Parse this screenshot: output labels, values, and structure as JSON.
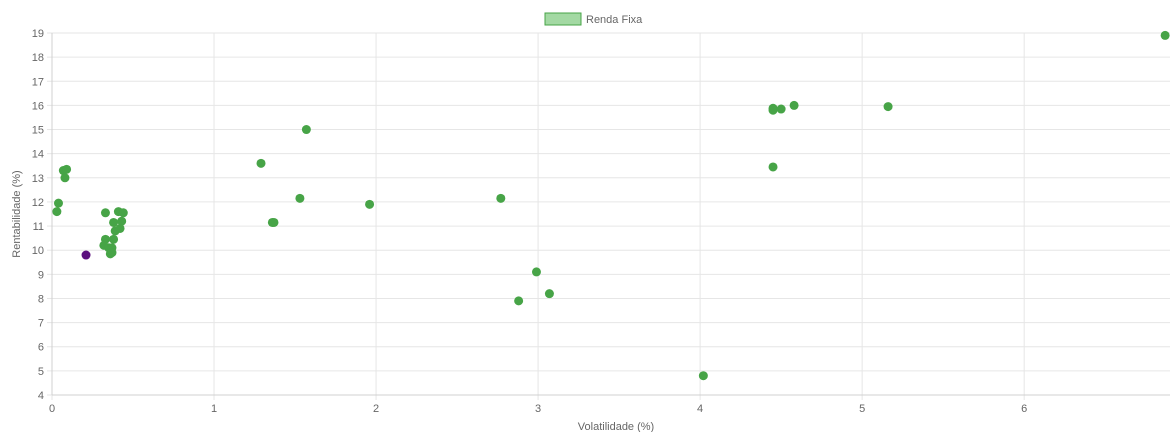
{
  "chart_data": {
    "type": "scatter",
    "xlabel": "Volatilidade (%)",
    "ylabel": "Rentabilidade (%)",
    "xlim": [
      0,
      6.9
    ],
    "ylim": [
      4,
      19
    ],
    "x_ticks": [
      0,
      1,
      2,
      3,
      4,
      5,
      6
    ],
    "y_ticks": [
      4,
      5,
      6,
      7,
      8,
      9,
      10,
      11,
      12,
      13,
      14,
      15,
      16,
      17,
      18,
      19
    ],
    "grid": true,
    "legend_position": "top",
    "series": [
      {
        "name": "Renda Fixa",
        "color": "#47a447",
        "legend_color": "#a3d9a3",
        "points": [
          {
            "x": 0.03,
            "y": 11.6
          },
          {
            "x": 0.04,
            "y": 11.95
          },
          {
            "x": 0.07,
            "y": 13.3
          },
          {
            "x": 0.09,
            "y": 13.35
          },
          {
            "x": 0.08,
            "y": 13.0
          },
          {
            "x": 0.33,
            "y": 11.55
          },
          {
            "x": 0.41,
            "y": 11.6
          },
          {
            "x": 0.44,
            "y": 11.55
          },
          {
            "x": 0.38,
            "y": 11.15
          },
          {
            "x": 0.43,
            "y": 11.2
          },
          {
            "x": 0.39,
            "y": 10.8
          },
          {
            "x": 0.42,
            "y": 10.9
          },
          {
            "x": 0.33,
            "y": 10.45
          },
          {
            "x": 0.38,
            "y": 10.45
          },
          {
            "x": 0.32,
            "y": 10.2
          },
          {
            "x": 0.35,
            "y": 10.1
          },
          {
            "x": 0.37,
            "y": 10.1
          },
          {
            "x": 0.36,
            "y": 9.85
          },
          {
            "x": 0.37,
            "y": 9.9
          },
          {
            "x": 1.29,
            "y": 13.6
          },
          {
            "x": 1.57,
            "y": 15.0
          },
          {
            "x": 1.53,
            "y": 12.15
          },
          {
            "x": 1.36,
            "y": 11.15
          },
          {
            "x": 1.37,
            "y": 11.15
          },
          {
            "x": 1.96,
            "y": 11.9
          },
          {
            "x": 2.77,
            "y": 12.15
          },
          {
            "x": 2.99,
            "y": 9.1
          },
          {
            "x": 2.88,
            "y": 7.9
          },
          {
            "x": 3.07,
            "y": 8.2
          },
          {
            "x": 4.02,
            "y": 4.8
          },
          {
            "x": 4.45,
            "y": 15.8
          },
          {
            "x": 4.45,
            "y": 15.88
          },
          {
            "x": 4.5,
            "y": 15.85
          },
          {
            "x": 4.58,
            "y": 16.0
          },
          {
            "x": 4.45,
            "y": 13.45
          },
          {
            "x": 5.16,
            "y": 15.95
          },
          {
            "x": 6.87,
            "y": 18.9
          }
        ]
      },
      {
        "color": "#5b0f7e",
        "points": [
          {
            "x": 0.21,
            "y": 9.8
          }
        ]
      }
    ]
  }
}
